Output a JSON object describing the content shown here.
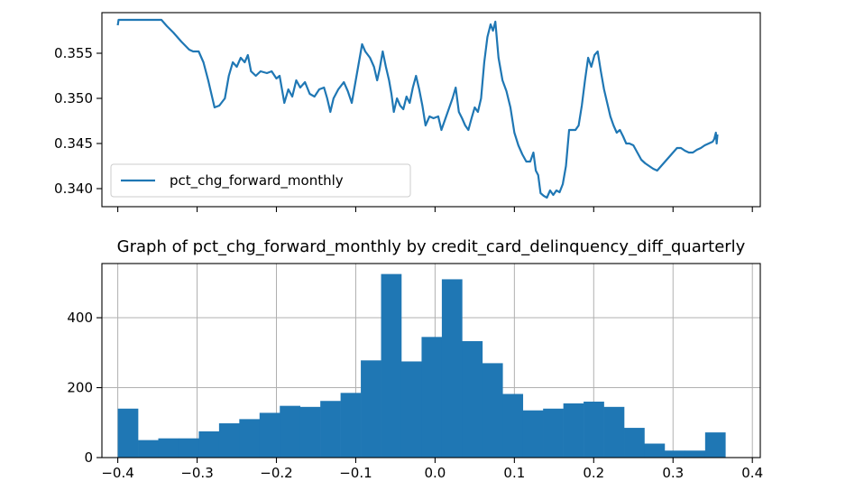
{
  "colors": {
    "series": "#1f77b4",
    "grid": "#b0b0b0",
    "axis": "#000000"
  },
  "chart_data": [
    {
      "type": "line",
      "title": "",
      "xlabel": "",
      "ylabel": "",
      "legend": {
        "placement": "lower-left",
        "entries": [
          "pct_chg_forward_monthly"
        ]
      },
      "grid": false,
      "ylim": [
        0.338,
        0.3595
      ],
      "yticks": [
        0.34,
        0.345,
        0.35,
        0.355
      ],
      "ytick_labels": [
        "0.340",
        "0.345",
        "0.350",
        "0.355"
      ],
      "x_tick_labels_shown": false,
      "series": [
        {
          "name": "pct_chg_forward_monthly",
          "points": [
            [
              -0.4,
              0.3581
            ],
            [
              -0.399,
              0.3587
            ],
            [
              -0.395,
              0.3587
            ],
            [
              -0.38,
              0.3587
            ],
            [
              -0.36,
              0.3587
            ],
            [
              -0.345,
              0.3587
            ],
            [
              -0.338,
              0.358
            ],
            [
              -0.33,
              0.3573
            ],
            [
              -0.32,
              0.3563
            ],
            [
              -0.31,
              0.3554
            ],
            [
              -0.305,
              0.3552
            ],
            [
              -0.298,
              0.3552
            ],
            [
              -0.292,
              0.354
            ],
            [
              -0.286,
              0.352
            ],
            [
              -0.282,
              0.3505
            ],
            [
              -0.278,
              0.349
            ],
            [
              -0.272,
              0.3492
            ],
            [
              -0.265,
              0.35
            ],
            [
              -0.26,
              0.3525
            ],
            [
              -0.255,
              0.354
            ],
            [
              -0.25,
              0.3535
            ],
            [
              -0.245,
              0.3545
            ],
            [
              -0.24,
              0.354
            ],
            [
              -0.236,
              0.3548
            ],
            [
              -0.232,
              0.353
            ],
            [
              -0.226,
              0.3525
            ],
            [
              -0.22,
              0.353
            ],
            [
              -0.212,
              0.3528
            ],
            [
              -0.206,
              0.353
            ],
            [
              -0.2,
              0.3522
            ],
            [
              -0.196,
              0.3525
            ],
            [
              -0.193,
              0.351
            ],
            [
              -0.19,
              0.3495
            ],
            [
              -0.185,
              0.351
            ],
            [
              -0.18,
              0.3502
            ],
            [
              -0.175,
              0.352
            ],
            [
              -0.17,
              0.3512
            ],
            [
              -0.164,
              0.3518
            ],
            [
              -0.158,
              0.3505
            ],
            [
              -0.152,
              0.3502
            ],
            [
              -0.146,
              0.351
            ],
            [
              -0.14,
              0.3512
            ],
            [
              -0.136,
              0.35
            ],
            [
              -0.132,
              0.3485
            ],
            [
              -0.128,
              0.35
            ],
            [
              -0.122,
              0.351
            ],
            [
              -0.115,
              0.3518
            ],
            [
              -0.11,
              0.3508
            ],
            [
              -0.105,
              0.3495
            ],
            [
              -0.1,
              0.352
            ],
            [
              -0.095,
              0.3545
            ],
            [
              -0.092,
              0.356
            ],
            [
              -0.088,
              0.3552
            ],
            [
              -0.082,
              0.3545
            ],
            [
              -0.077,
              0.3535
            ],
            [
              -0.073,
              0.352
            ],
            [
              -0.07,
              0.3532
            ],
            [
              -0.066,
              0.3552
            ],
            [
              -0.062,
              0.3535
            ],
            [
              -0.058,
              0.352
            ],
            [
              -0.055,
              0.3505
            ],
            [
              -0.052,
              0.3485
            ],
            [
              -0.048,
              0.35
            ],
            [
              -0.044,
              0.3492
            ],
            [
              -0.04,
              0.3488
            ],
            [
              -0.036,
              0.3502
            ],
            [
              -0.032,
              0.3495
            ],
            [
              -0.028,
              0.3512
            ],
            [
              -0.024,
              0.3525
            ],
            [
              -0.02,
              0.351
            ],
            [
              -0.016,
              0.3492
            ],
            [
              -0.012,
              0.347
            ],
            [
              -0.007,
              0.348
            ],
            [
              -0.002,
              0.3478
            ],
            [
              0.004,
              0.348
            ],
            [
              0.008,
              0.3465
            ],
            [
              0.012,
              0.3475
            ],
            [
              0.018,
              0.349
            ],
            [
              0.022,
              0.35
            ],
            [
              0.026,
              0.3512
            ],
            [
              0.03,
              0.3485
            ],
            [
              0.034,
              0.3478
            ],
            [
              0.038,
              0.347
            ],
            [
              0.042,
              0.3465
            ],
            [
              0.046,
              0.3478
            ],
            [
              0.05,
              0.349
            ],
            [
              0.054,
              0.3485
            ],
            [
              0.058,
              0.35
            ],
            [
              0.062,
              0.354
            ],
            [
              0.066,
              0.3568
            ],
            [
              0.07,
              0.3582
            ],
            [
              0.073,
              0.3575
            ],
            [
              0.076,
              0.3585
            ],
            [
              0.08,
              0.3545
            ],
            [
              0.085,
              0.352
            ],
            [
              0.09,
              0.3508
            ],
            [
              0.095,
              0.349
            ],
            [
              0.1,
              0.3462
            ],
            [
              0.105,
              0.3448
            ],
            [
              0.11,
              0.3438
            ],
            [
              0.115,
              0.343
            ],
            [
              0.12,
              0.343
            ],
            [
              0.124,
              0.344
            ],
            [
              0.127,
              0.342
            ],
            [
              0.13,
              0.3415
            ],
            [
              0.133,
              0.3395
            ],
            [
              0.137,
              0.3392
            ],
            [
              0.141,
              0.339
            ],
            [
              0.145,
              0.3398
            ],
            [
              0.149,
              0.3393
            ],
            [
              0.153,
              0.3398
            ],
            [
              0.157,
              0.3396
            ],
            [
              0.161,
              0.3405
            ],
            [
              0.165,
              0.3425
            ],
            [
              0.169,
              0.3465
            ],
            [
              0.173,
              0.3465
            ],
            [
              0.177,
              0.3465
            ],
            [
              0.181,
              0.347
            ],
            [
              0.185,
              0.3492
            ],
            [
              0.189,
              0.352
            ],
            [
              0.193,
              0.3545
            ],
            [
              0.197,
              0.3535
            ],
            [
              0.201,
              0.3548
            ],
            [
              0.205,
              0.3552
            ],
            [
              0.209,
              0.353
            ],
            [
              0.213,
              0.351
            ],
            [
              0.217,
              0.3495
            ],
            [
              0.221,
              0.348
            ],
            [
              0.225,
              0.347
            ],
            [
              0.229,
              0.3462
            ],
            [
              0.233,
              0.3465
            ],
            [
              0.237,
              0.3458
            ],
            [
              0.241,
              0.345
            ],
            [
              0.245,
              0.345
            ],
            [
              0.25,
              0.3448
            ],
            [
              0.255,
              0.344
            ],
            [
              0.26,
              0.3432
            ],
            [
              0.265,
              0.3428
            ],
            [
              0.27,
              0.3425
            ],
            [
              0.275,
              0.3422
            ],
            [
              0.28,
              0.342
            ],
            [
              0.285,
              0.3425
            ],
            [
              0.29,
              0.343
            ],
            [
              0.295,
              0.3435
            ],
            [
              0.3,
              0.344
            ],
            [
              0.305,
              0.3445
            ],
            [
              0.31,
              0.3445
            ],
            [
              0.315,
              0.3442
            ],
            [
              0.32,
              0.344
            ],
            [
              0.325,
              0.344
            ],
            [
              0.33,
              0.3443
            ],
            [
              0.335,
              0.3445
            ],
            [
              0.34,
              0.3448
            ],
            [
              0.345,
              0.345
            ],
            [
              0.35,
              0.3452
            ],
            [
              0.352,
              0.3455
            ],
            [
              0.354,
              0.3462
            ],
            [
              0.355,
              0.345
            ],
            [
              0.356,
              0.346
            ]
          ]
        }
      ]
    },
    {
      "type": "bar",
      "title": "Graph of pct_chg_forward_monthly by credit_card_delinquency_diff_quarterly",
      "xlabel": "",
      "ylabel": "",
      "grid": true,
      "xlim": [
        -0.42,
        0.41
      ],
      "ylim": [
        0,
        555
      ],
      "xticks": [
        -0.4,
        -0.3,
        -0.2,
        -0.1,
        0.0,
        0.1,
        0.2,
        0.3,
        0.4
      ],
      "xtick_labels": [
        "−0.4",
        "−0.3",
        "−0.2",
        "−0.1",
        "0.0",
        "0.1",
        "0.2",
        "0.3",
        "0.4"
      ],
      "yticks": [
        0,
        200,
        400
      ],
      "ytick_labels": [
        "0",
        "200",
        "400"
      ],
      "bin_range": [
        -0.4,
        0.366
      ],
      "values": [
        140,
        50,
        55,
        55,
        75,
        98,
        110,
        128,
        148,
        145,
        162,
        185,
        278,
        525,
        275,
        345,
        510,
        333,
        270,
        182,
        135,
        140,
        155,
        160,
        145,
        85,
        40,
        20,
        20,
        72
      ]
    }
  ]
}
